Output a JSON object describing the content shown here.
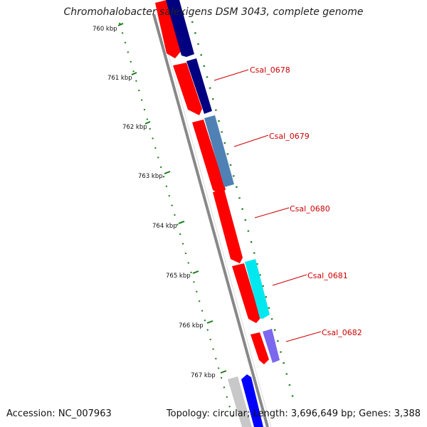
{
  "title": "Chromohalobacter salexigens DSM 3043, complete genome",
  "footer": {
    "accession": "Accession: NC_007963",
    "topology": "Topology: circular; Length: 3,696,649 bp; Genes: 3,388"
  },
  "scale_labels": [
    "760 kbp",
    "761 kbp",
    "762 kbp",
    "763 kbp",
    "764 kbp",
    "765 kbp",
    "766 kbp",
    "767 kbp"
  ],
  "gene_labels": [
    "Csal_0678",
    "Csal_0679",
    "Csal_0680",
    "Csal_0681",
    "Csal_0682"
  ],
  "colors": {
    "background": "#ffffff",
    "backbone": "#888888",
    "cds": "#ff0000",
    "gene_navy": "#000080",
    "gene_steelblue": "#4f81b5",
    "gene_cyan": "#00ffff",
    "gene_purple": "#7b68ee",
    "gene_blue": "#0000ff",
    "gene_gray": "#cccccc",
    "gc_ticks": "#006400",
    "label_text": "#cc0000"
  }
}
